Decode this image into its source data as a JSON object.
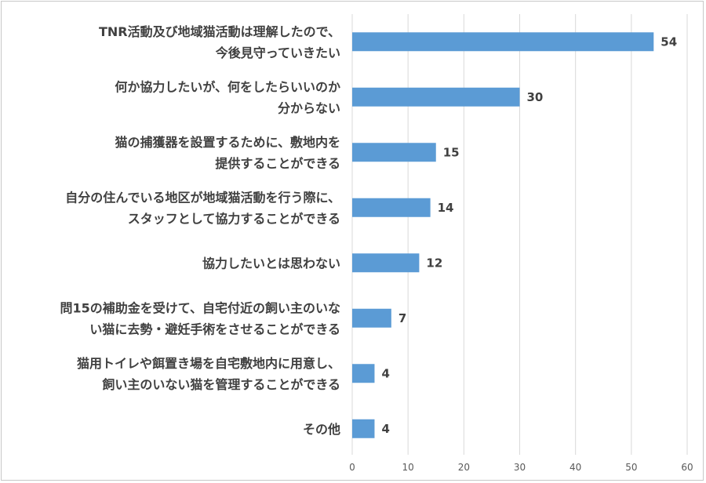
{
  "chart_data": {
    "type": "bar",
    "orientation": "horizontal",
    "categories": [
      [
        "TNR活動及び地域猫活動は理解したので、",
        "今後見守っていきたい"
      ],
      [
        "何か協力したいが、何をしたらいいのか",
        "分からない"
      ],
      [
        "猫の捕獲器を設置するために、敷地内を",
        "提供することができる"
      ],
      [
        "自分の住んでいる地区が地域猫活動を行う際に、",
        "スタッフとして協力することができる"
      ],
      [
        "協力したいとは思わない"
      ],
      [
        "問15の補助金を受けて、自宅付近の飼い主のいな",
        "い猫に去勢・避妊手術をさせることができる"
      ],
      [
        "猫用トイレや餌置き場を自宅敷地内に用意し、",
        "飼い主のいない猫を管理することができる"
      ],
      [
        "その他"
      ]
    ],
    "values": [
      54,
      30,
      15,
      14,
      12,
      7,
      4,
      4
    ],
    "xlim": [
      0,
      60
    ],
    "xticks": [
      0,
      10,
      20,
      30,
      40,
      50,
      60
    ],
    "grid": "vertical",
    "legend": "none",
    "title": "",
    "xlabel": "",
    "ylabel": "",
    "colors": {
      "bar": "#5b9bd5",
      "grid": "#d9d9d9",
      "text": "#404040",
      "tick_text": "#595959"
    }
  }
}
